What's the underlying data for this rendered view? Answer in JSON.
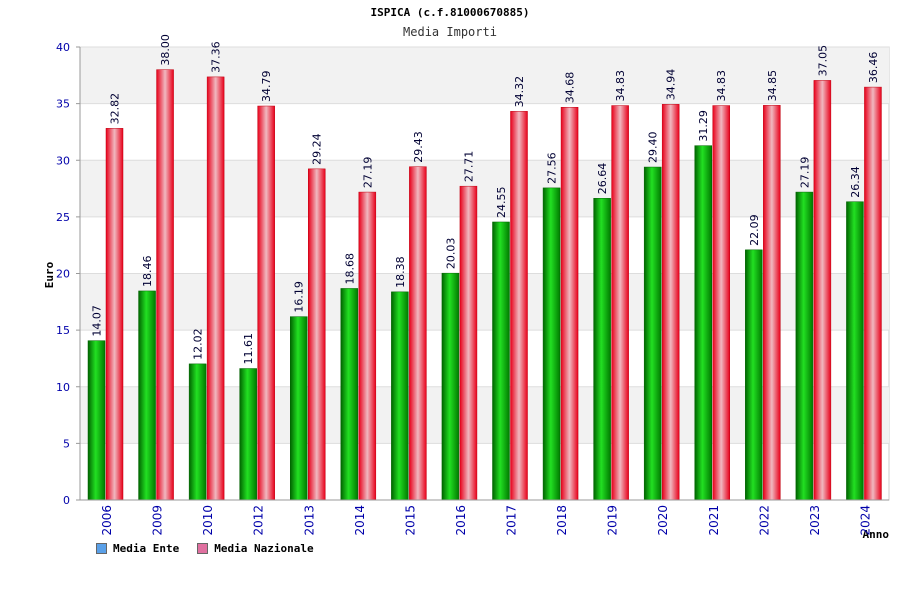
{
  "header": {
    "title": "ISPICA (c.f.81000670885)",
    "subtitle": "Media Importi"
  },
  "chart_data": {
    "type": "bar",
    "title": "ISPICA (c.f.81000670885)",
    "subtitle": "Media Importi",
    "xlabel": "Anno",
    "ylabel": "Euro",
    "ylim": [
      0,
      40
    ],
    "yticks": [
      0,
      5,
      10,
      15,
      20,
      25,
      30,
      35,
      40
    ],
    "grid": true,
    "legend_position": "bottom-left",
    "categories": [
      "2006",
      "2009",
      "2010",
      "2012",
      "2013",
      "2014",
      "2015",
      "2016",
      "2017",
      "2018",
      "2019",
      "2020",
      "2021",
      "2022",
      "2023",
      "2024"
    ],
    "series": [
      {
        "name": "Media Ente",
        "color": "#00b000",
        "legend_color": "#5aa0e8",
        "values": [
          14.07,
          18.46,
          12.02,
          11.61,
          16.19,
          18.68,
          18.38,
          20.03,
          24.55,
          27.56,
          26.64,
          29.4,
          31.29,
          22.09,
          27.19,
          26.34
        ],
        "labels": [
          "14.07",
          "18.46",
          "12.02",
          "11.61",
          "16.19",
          "18.68",
          "18.38",
          "20.03",
          "24.55",
          "27.56",
          "26.64",
          "29.40",
          "31.29",
          "22.09",
          "27.19",
          "26.34"
        ]
      },
      {
        "name": "Media Nazionale",
        "color": "#e8001a",
        "legend_color": "#e070a0",
        "values": [
          32.82,
          38.0,
          37.36,
          34.79,
          29.24,
          27.19,
          29.43,
          27.71,
          34.32,
          34.68,
          34.83,
          34.94,
          34.83,
          34.85,
          37.05,
          36.46
        ],
        "labels": [
          "32.82",
          "38.00",
          "37.36",
          "34.79",
          "29.24",
          "27.19",
          "29.43",
          "27.71",
          "34.32",
          "34.68",
          "34.83",
          "34.94",
          "34.83",
          "34.85",
          "37.05",
          "36.46"
        ]
      }
    ]
  }
}
